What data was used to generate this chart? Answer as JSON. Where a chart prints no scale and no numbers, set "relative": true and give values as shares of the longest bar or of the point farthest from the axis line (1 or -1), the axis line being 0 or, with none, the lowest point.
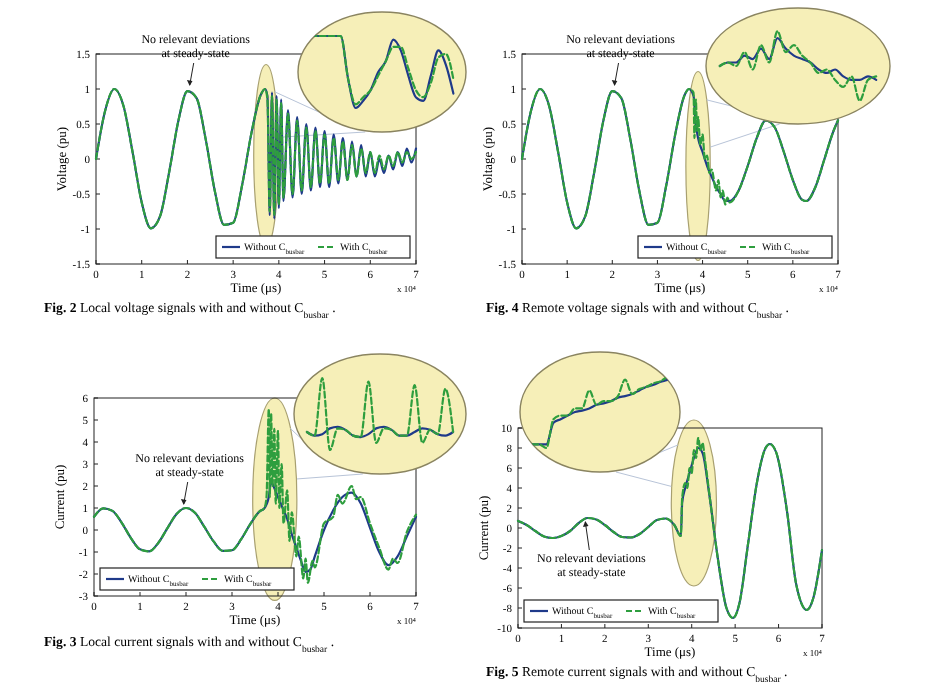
{
  "chart_data": [
    {
      "type": "line",
      "title": "Fig. 2 Local voltage signals with and without C$_{busbar}$.",
      "xlabel": "Time (μs)",
      "ylabel": "Voltage (pu)",
      "xlim": [
        0,
        7
      ],
      "ylim": [
        -1.5,
        1.5
      ],
      "xticks": [
        0,
        1,
        2,
        3,
        4,
        5,
        6,
        7
      ],
      "yticks": [
        -1.5,
        -1,
        -0.5,
        0,
        0.5,
        1,
        1.5
      ],
      "legend": "bottom right",
      "annotations": [
        {
          "text": "No relevant deviations at steady-state",
          "x": 2.05,
          "y": 1
        },
        "x 10⁴"
      ],
      "series": [
        {
          "name": "Without C$_{busbar}$",
          "color": "#1f3a8a",
          "line_style": "solid",
          "x": [
            0,
            0.2,
            0.4,
            0.6,
            0.8,
            1,
            1.2,
            1.4,
            1.6,
            1.8,
            2,
            2.2,
            2.4,
            2.6,
            2.8,
            3,
            3.2,
            3.4,
            3.6,
            3.7,
            3.75,
            3.8,
            3.85,
            3.9,
            3.95,
            4,
            4.05,
            4.1,
            4.2,
            4.3,
            4.4,
            4.5,
            4.6,
            4.7,
            4.8,
            4.9,
            5,
            5.1,
            5.2,
            5.3,
            5.4,
            5.5,
            5.6,
            5.7,
            5.8,
            5.9,
            6,
            6.1,
            6.2,
            6.3,
            6.4,
            6.5,
            6.6,
            6.7,
            6.8,
            6.9,
            7
          ],
          "values": [
            0,
            0.69,
            1,
            0.76,
            0.1,
            -0.62,
            -0.99,
            -0.82,
            -0.19,
            0.54,
            0.97,
            0.87,
            0.28,
            -0.46,
            -0.94,
            -0.91,
            -0.36,
            0.37,
            0.91,
            1,
            0.9,
            -0.8,
            0.95,
            -0.85,
            0.9,
            -0.7,
            0.85,
            -0.6,
            0.7,
            -0.55,
            0.6,
            -0.5,
            0.5,
            -0.45,
            0.45,
            -0.4,
            0.4,
            -0.4,
            0.35,
            -0.35,
            0.3,
            -0.3,
            0.25,
            -0.25,
            0.2,
            -0.25,
            0.1,
            -0.25,
            0,
            -0.2,
            0.05,
            -0.15,
            0.1,
            -0.1,
            0.15,
            -0.05,
            0.15
          ]
        },
        {
          "name": "With C$_{busbar}$",
          "color": "#2e9e3e",
          "line_style": "dashed",
          "x": [
            0,
            0.2,
            0.4,
            0.6,
            0.8,
            1,
            1.2,
            1.4,
            1.6,
            1.8,
            2,
            2.2,
            2.4,
            2.6,
            2.8,
            3,
            3.2,
            3.4,
            3.6,
            3.7,
            3.75,
            3.8,
            3.85,
            3.9,
            3.95,
            4,
            4.05,
            4.1,
            4.2,
            4.3,
            4.4,
            4.5,
            4.6,
            4.7,
            4.8,
            4.9,
            5,
            5.1,
            5.2,
            5.3,
            5.4,
            5.5,
            5.6,
            5.7,
            5.8,
            5.9,
            6,
            6.1,
            6.2,
            6.3,
            6.4,
            6.5,
            6.6,
            6.7,
            6.8,
            6.9,
            7
          ],
          "values": [
            0,
            0.69,
            1,
            0.76,
            0.1,
            -0.62,
            -0.99,
            -0.82,
            -0.19,
            0.54,
            0.97,
            0.87,
            0.28,
            -0.46,
            -0.94,
            -0.91,
            -0.36,
            0.37,
            0.91,
            1,
            0.85,
            -0.75,
            0.9,
            -0.8,
            0.85,
            -0.65,
            0.8,
            -0.55,
            0.65,
            -0.5,
            0.55,
            -0.45,
            0.45,
            -0.4,
            0.4,
            -0.35,
            0.35,
            -0.35,
            0.3,
            -0.3,
            0.25,
            -0.3,
            0.2,
            -0.25,
            0.15,
            -0.2,
            0.1,
            -0.2,
            0.05,
            -0.15,
            0.05,
            -0.1,
            0.1,
            -0.05,
            0.1,
            0,
            0.1
          ]
        }
      ]
    },
    {
      "type": "line",
      "relative": true,
      "categories": [
        null,
        null,
        null,
        null,
        null,
        null,
        null,
        null,
        null,
        null,
        null,
        null,
        null,
        null,
        null,
        null,
        null,
        null,
        null,
        null
      ],
      "series": [
        {
          "color": "#1f3a8a",
          "line_style": "solid",
          "values": [
            1,
            1,
            1,
            1,
            1,
            0.4,
            0,
            0.1,
            0.25,
            0.5,
            0.65,
            0.95,
            0.8,
            0.45,
            0.15,
            0.1,
            0.45,
            0.8,
            0.6,
            0.2
          ]
        },
        {
          "color": "#2e9e3e",
          "line_style": "dashed",
          "values": [
            1,
            1,
            1,
            1,
            1,
            0.4,
            0.05,
            0.15,
            0.25,
            0.45,
            0.65,
            0.85,
            0.85,
            0.55,
            0.25,
            0.15,
            0.35,
            0.7,
            0.75,
            0.4
          ]
        }
      ]
    },
    {
      "type": "line",
      "title": "Fig. 4 Remote voltage signals with and without C$_{busbar}$.",
      "xlabel": "Time (μs)",
      "ylabel": "Voltage (pu)",
      "xlim": [
        0,
        7
      ],
      "ylim": [
        -1.5,
        1.5
      ],
      "xticks": [
        0,
        1,
        2,
        3,
        4,
        5,
        6,
        7
      ],
      "yticks": [
        -1.5,
        -1,
        -0.5,
        0,
        0.5,
        1,
        1.5
      ],
      "legend": "bottom right",
      "annotations": [
        {
          "text": "No relevant deviations at steady-state",
          "x": 2.05,
          "y": 1
        },
        "x 10⁴"
      ],
      "series": [
        {
          "name": "Without C$_{busbar}$",
          "color": "#1f3a8a",
          "line_style": "solid",
          "x": [
            0,
            0.2,
            0.4,
            0.6,
            0.8,
            1,
            1.2,
            1.4,
            1.6,
            1.8,
            2,
            2.2,
            2.4,
            2.6,
            2.8,
            3,
            3.2,
            3.4,
            3.6,
            3.7,
            3.8,
            3.85,
            3.9,
            4,
            4.1,
            4.2,
            4.3,
            4.4,
            4.5,
            4.6,
            4.8,
            5,
            5.2,
            5.4,
            5.6,
            5.8,
            6,
            6.2,
            6.3,
            6.5,
            6.7,
            6.9,
            7
          ],
          "values": [
            0,
            0.69,
            1,
            0.76,
            0.1,
            -0.62,
            -0.99,
            -0.82,
            -0.19,
            0.54,
            0.97,
            0.87,
            0.28,
            -0.46,
            -0.94,
            -0.91,
            -0.36,
            0.37,
            0.91,
            1,
            0.9,
            0.5,
            0.3,
            0.1,
            -0.1,
            -0.25,
            -0.4,
            -0.5,
            -0.6,
            -0.6,
            -0.45,
            -0.1,
            0.3,
            0.55,
            0.45,
            0.1,
            -0.3,
            -0.58,
            -0.6,
            -0.4,
            0,
            0.4,
            0.55
          ]
        },
        {
          "name": "With C$_{busbar}$",
          "color": "#2e9e3e",
          "line_style": "dashed",
          "x": [
            0,
            0.2,
            0.4,
            0.6,
            0.8,
            1,
            1.2,
            1.4,
            1.6,
            1.8,
            2,
            2.2,
            2.4,
            2.6,
            2.8,
            3,
            3.2,
            3.4,
            3.6,
            3.7,
            3.8,
            3.82,
            3.85,
            3.88,
            3.9,
            3.95,
            4,
            4.05,
            4.1,
            4.15,
            4.2,
            4.3,
            4.35,
            4.4,
            4.45,
            4.5,
            4.55,
            4.6,
            4.8,
            5,
            5.2,
            5.4,
            5.6,
            5.8,
            6,
            6.2,
            6.3,
            6.5,
            6.7,
            6.9,
            7
          ],
          "values": [
            0,
            0.69,
            1,
            0.76,
            0.1,
            -0.62,
            -0.99,
            -0.82,
            -0.19,
            0.54,
            0.97,
            0.87,
            0.28,
            -0.46,
            -0.94,
            -0.91,
            -0.36,
            0.37,
            0.91,
            1,
            0.95,
            0.3,
            0.85,
            0.4,
            0.6,
            0.2,
            0.35,
            0,
            0.05,
            -0.2,
            -0.15,
            -0.45,
            -0.3,
            -0.55,
            -0.45,
            -0.65,
            -0.55,
            -0.62,
            -0.45,
            -0.1,
            0.3,
            0.55,
            0.45,
            0.1,
            -0.3,
            -0.58,
            -0.6,
            -0.4,
            0,
            0.4,
            0.55
          ]
        }
      ]
    },
    {
      "type": "line",
      "relative": true,
      "categories": [
        null,
        null,
        null,
        null,
        null,
        null,
        null,
        null,
        null,
        null,
        null,
        null,
        null,
        null,
        null,
        null,
        null,
        null,
        null,
        null
      ],
      "series": [
        {
          "color": "#1f3a8a",
          "line_style": "solid",
          "values": [
            0.5,
            0.55,
            0.55,
            0.65,
            0.6,
            0.75,
            0.6,
            0.9,
            0.75,
            0.65,
            0.6,
            0.55,
            0.45,
            0.4,
            0.45,
            0.35,
            0.3,
            0.3,
            0.35,
            0.3
          ]
        },
        {
          "color": "#2e9e3e",
          "line_style": "dashed",
          "values": [
            0.5,
            0.55,
            0.5,
            0.7,
            0.45,
            0.8,
            0.55,
            1,
            0.7,
            0.8,
            0.65,
            0.55,
            0.4,
            0.45,
            0.3,
            0.2,
            0.35,
            0,
            0.3,
            0.35
          ]
        }
      ]
    },
    {
      "type": "line",
      "title": "Fig. 3 Local current signals with and without C$_{busbar}$.",
      "xlabel": "Time (μs)",
      "ylabel": "Current (pu)",
      "xlim": [
        0,
        7
      ],
      "ylim": [
        -3,
        6
      ],
      "xticks": [
        0,
        1,
        2,
        3,
        4,
        5,
        6,
        7
      ],
      "yticks": [
        -3,
        -2,
        -1,
        0,
        1,
        2,
        3,
        4,
        5,
        6
      ],
      "legend": "bottom left",
      "annotations": [
        {
          "text": "No relevant deviations at steady-state",
          "x": 1.95,
          "y": 1
        },
        "x 10⁴"
      ],
      "series": [
        {
          "name": "Without C$_{busbar}$",
          "color": "#1f3a8a",
          "line_style": "solid",
          "x": [
            0,
            0.2,
            0.4,
            0.6,
            0.8,
            1,
            1.2,
            1.4,
            1.6,
            1.8,
            2,
            2.2,
            2.4,
            2.6,
            2.8,
            3,
            3.2,
            3.4,
            3.6,
            3.7,
            3.8,
            3.85,
            3.9,
            4,
            4.1,
            4.2,
            4.3,
            4.4,
            4.5,
            4.6,
            4.7,
            4.8,
            5,
            5.2,
            5.4,
            5.6,
            5.8,
            6,
            6.2,
            6.4,
            6.6,
            6.8,
            7
          ],
          "values": [
            0.6,
            0.98,
            0.87,
            0.34,
            -0.36,
            -0.88,
            -0.97,
            -0.58,
            0.1,
            0.74,
            1,
            0.77,
            0.14,
            -0.52,
            -0.95,
            -0.92,
            -0.42,
            0.28,
            0.85,
            0.98,
            1.5,
            2.2,
            2,
            1.5,
            1,
            0.5,
            -0.2,
            -0.8,
            -1.4,
            -1.9,
            -1.8,
            -1.2,
            0,
            0.9,
            1.5,
            1.7,
            1.2,
            0.1,
            -1,
            -1.6,
            -1.2,
            -0.3,
            0.6
          ]
        },
        {
          "name": "With C$_{busbar}$",
          "color": "#2e9e3e",
          "line_style": "dashed",
          "x": [
            0,
            0.2,
            0.4,
            0.6,
            0.8,
            1,
            1.2,
            1.4,
            1.6,
            1.8,
            2,
            2.2,
            2.4,
            2.6,
            2.8,
            3,
            3.2,
            3.4,
            3.6,
            3.7,
            3.75,
            3.8,
            3.82,
            3.85,
            3.88,
            3.92,
            3.95,
            4,
            4.03,
            4.08,
            4.12,
            4.2,
            4.25,
            4.3,
            4.4,
            4.45,
            4.55,
            4.6,
            4.65,
            4.75,
            4.8,
            5,
            5.2,
            5.3,
            5.4,
            5.6,
            5.7,
            5.8,
            6,
            6.2,
            6.4,
            6.5,
            6.6,
            6.8,
            7
          ],
          "values": [
            0.6,
            0.98,
            0.87,
            0.34,
            -0.36,
            -0.88,
            -0.97,
            -0.58,
            0.1,
            0.74,
            1,
            0.77,
            0.14,
            -0.52,
            -0.95,
            -0.92,
            -0.42,
            0.28,
            0.85,
            0.98,
            1.5,
            5.5,
            1.5,
            5.3,
            2,
            4.6,
            1.2,
            4.5,
            1,
            3,
            0.3,
            1.8,
            -0.5,
            0.8,
            -1.2,
            -0.3,
            -2.2,
            -1.3,
            -2.4,
            -1.4,
            -1.7,
            0.3,
            0.6,
            1.6,
            1.2,
            2,
            1.4,
            1.5,
            0.3,
            -0.8,
            -1.8,
            -1.3,
            -1.5,
            -0.1,
            0.7
          ]
        }
      ]
    },
    {
      "type": "line",
      "relative": true,
      "categories": [
        null,
        null,
        null,
        null,
        null,
        null,
        null,
        null,
        null,
        null,
        null,
        null,
        null,
        null,
        null,
        null,
        null,
        null,
        null,
        null
      ],
      "series": [
        {
          "color": "#1f3a8a",
          "line_style": "solid",
          "values": [
            0.25,
            0.2,
            0.22,
            0.3,
            0.32,
            0.28,
            0.2,
            0.18,
            0.22,
            0.3,
            0.32,
            0.28,
            0.2,
            0.2,
            0.25,
            0.3,
            0.28,
            0.22,
            0.2,
            0.25
          ]
        },
        {
          "color": "#2e9e3e",
          "line_style": "dashed",
          "values": [
            0.25,
            0.2,
            1,
            0,
            0.3,
            0.28,
            0.2,
            0.18,
            0.95,
            0.1,
            0.3,
            0.28,
            0.2,
            0.2,
            0.9,
            0.1,
            0.28,
            0.22,
            0.85,
            0.25
          ]
        }
      ]
    },
    {
      "type": "line",
      "title": "Fig. 5 Remote current signals with and without C$_{busbar}$.",
      "xlabel": "Time (μs)",
      "ylabel": "Current (pu)",
      "xlim": [
        0,
        7
      ],
      "ylim": [
        -10,
        10
      ],
      "xticks": [
        0,
        1,
        2,
        3,
        4,
        5,
        6,
        7
      ],
      "yticks": [
        -10,
        -8,
        -6,
        -4,
        -2,
        0,
        2,
        4,
        6,
        8,
        10
      ],
      "legend": "bottom left",
      "annotations": [
        {
          "text": "No relevant deviations at steady-state",
          "x": 1.55,
          "y": 1
        },
        "x 10⁴"
      ],
      "series": [
        {
          "name": "Without C$_{busbar}$",
          "color": "#1f3a8a",
          "line_style": "solid",
          "x": [
            0,
            0.2,
            0.4,
            0.6,
            0.8,
            1,
            1.2,
            1.4,
            1.6,
            1.8,
            2,
            2.2,
            2.4,
            2.6,
            2.8,
            3,
            3.2,
            3.4,
            3.6,
            3.75,
            3.78,
            3.85,
            3.95,
            4.05,
            4.15,
            4.25,
            4.4,
            4.6,
            4.8,
            4.95,
            5.1,
            5.3,
            5.5,
            5.7,
            5.8,
            5.95,
            6.2,
            6.4,
            6.65,
            6.8,
            7
          ],
          "values": [
            0.7,
            0.3,
            -0.3,
            -0.85,
            -1,
            -0.8,
            -0.3,
            0.5,
            1,
            0.85,
            0.3,
            -0.4,
            -0.9,
            -0.95,
            -0.6,
            0.1,
            0.8,
            0.95,
            0.3,
            -0.8,
            2.5,
            4,
            5.5,
            7,
            8,
            7.5,
            3.5,
            -3,
            -8,
            -9,
            -7.5,
            -1.5,
            4.5,
            8,
            8.4,
            7.5,
            1.5,
            -5.5,
            -8.2,
            -7,
            -2.2
          ]
        },
        {
          "name": "With C$_{busbar}$",
          "color": "#2e9e3e",
          "line_style": "dashed",
          "x": [
            0,
            0.2,
            0.4,
            0.6,
            0.8,
            1,
            1.2,
            1.4,
            1.6,
            1.8,
            2,
            2.2,
            2.4,
            2.6,
            2.8,
            3,
            3.2,
            3.4,
            3.6,
            3.75,
            3.78,
            3.85,
            3.9,
            3.95,
            4,
            4.05,
            4.1,
            4.15,
            4.2,
            4.25,
            4.3,
            4.4,
            4.6,
            4.8,
            4.95,
            5.1,
            5.3,
            5.5,
            5.7,
            5.8,
            5.95,
            6.2,
            6.4,
            6.65,
            6.8,
            7
          ],
          "values": [
            0.7,
            0.3,
            -0.3,
            -0.85,
            -1,
            -0.8,
            -0.3,
            0.5,
            1,
            0.85,
            0.3,
            -0.4,
            -0.9,
            -0.95,
            -0.6,
            0.1,
            0.8,
            0.95,
            0.3,
            -0.8,
            3,
            4.5,
            4,
            6,
            5.5,
            7.8,
            7,
            9,
            7.8,
            8.5,
            7,
            3.6,
            -3,
            -8,
            -9,
            -7.5,
            -1.5,
            4.5,
            8,
            8.4,
            7.5,
            1.5,
            -5.5,
            -8.2,
            -7,
            -2.2
          ]
        }
      ]
    },
    {
      "type": "line",
      "relative": true,
      "categories": [
        null,
        null,
        null,
        null,
        null,
        null,
        null,
        null,
        null,
        null,
        null,
        null,
        null,
        null,
        null,
        null,
        null,
        null,
        null,
        null
      ],
      "series": [
        {
          "color": "#1f3a8a",
          "line_style": "solid",
          "values": [
            0.05,
            0.05,
            0.05,
            0.35,
            0.4,
            0.45,
            0.5,
            0.52,
            0.55,
            0.6,
            0.62,
            0.65,
            0.7,
            0.72,
            0.75,
            0.8,
            0.85,
            0.88,
            0.92,
            0.95
          ]
        },
        {
          "color": "#2e9e3e",
          "line_style": "dashed",
          "values": [
            0.05,
            0.05,
            0,
            0.4,
            0.45,
            0.45,
            0.55,
            0.55,
            0.8,
            0.6,
            0.65,
            0.65,
            0.72,
            0.95,
            0.75,
            0.82,
            0.85,
            0.9,
            0.93,
            1
          ]
        }
      ]
    }
  ]
}
